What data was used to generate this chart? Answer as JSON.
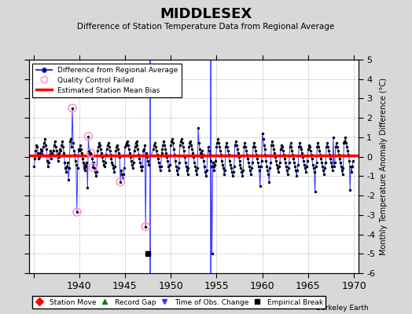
{
  "title": "MIDDLESEX",
  "subtitle": "Difference of Station Temperature Data from Regional Average",
  "ylabel": "Monthly Temperature Anomaly Difference (°C)",
  "xlim": [
    1934.5,
    1970.5
  ],
  "ylim": [
    -6,
    5
  ],
  "yticks": [
    -6,
    -5,
    -4,
    -3,
    -2,
    -1,
    0,
    1,
    2,
    3,
    4,
    5
  ],
  "xticks": [
    1935,
    1940,
    1945,
    1950,
    1955,
    1960,
    1965,
    1970
  ],
  "xticklabels": [
    "",
    "1940",
    "1945",
    "1950",
    "1955",
    "1960",
    "1965",
    "1970"
  ],
  "bias_value": 0.05,
  "time_of_obs_changes": [
    1947.75,
    1954.33
  ],
  "empirical_break_x": 1947.5,
  "empirical_break_y": -5.0,
  "quality_control_failed": [
    [
      1939.25,
      2.5
    ],
    [
      1939.75,
      -2.85
    ],
    [
      1941.0,
      1.05
    ],
    [
      1941.25,
      0.2
    ],
    [
      1941.5,
      -0.55
    ],
    [
      1944.5,
      -1.3
    ],
    [
      1947.25,
      -3.6
    ]
  ],
  "line_color": "#3333ff",
  "bias_color": "#ff0000",
  "qc_color": "#ff99cc",
  "background_color": "#d8d8d8",
  "plot_bg_color": "#ffffff",
  "grid_color": "#bbbbbb",
  "series_data": [
    [
      1935.0833,
      -0.5
    ],
    [
      1935.1667,
      -0.1
    ],
    [
      1935.25,
      0.3
    ],
    [
      1935.3333,
      0.6
    ],
    [
      1935.4167,
      0.5
    ],
    [
      1935.5,
      0.2
    ],
    [
      1935.5833,
      -0.1
    ],
    [
      1935.6667,
      0.0
    ],
    [
      1935.75,
      0.2
    ],
    [
      1935.8333,
      0.4
    ],
    [
      1935.9167,
      0.3
    ],
    [
      1936.0,
      0.1
    ],
    [
      1936.0833,
      0.5
    ],
    [
      1936.1667,
      0.7
    ],
    [
      1936.25,
      0.9
    ],
    [
      1936.3333,
      0.6
    ],
    [
      1936.4167,
      0.4
    ],
    [
      1936.5,
      -0.2
    ],
    [
      1936.5833,
      -0.5
    ],
    [
      1936.6667,
      -0.3
    ],
    [
      1936.75,
      0.1
    ],
    [
      1936.8333,
      0.3
    ],
    [
      1936.9167,
      -0.1
    ],
    [
      1937.0,
      0.2
    ],
    [
      1937.0833,
      0.1
    ],
    [
      1937.1667,
      0.3
    ],
    [
      1937.25,
      0.6
    ],
    [
      1937.3333,
      0.8
    ],
    [
      1937.4167,
      0.5
    ],
    [
      1937.5,
      0.3
    ],
    [
      1937.5833,
      0.1
    ],
    [
      1937.6667,
      -0.2
    ],
    [
      1937.75,
      0.0
    ],
    [
      1937.8333,
      0.2
    ],
    [
      1937.9167,
      0.4
    ],
    [
      1938.0,
      0.3
    ],
    [
      1938.0833,
      0.6
    ],
    [
      1938.1667,
      0.8
    ],
    [
      1938.25,
      0.5
    ],
    [
      1938.3333,
      0.2
    ],
    [
      1938.4167,
      -0.3
    ],
    [
      1938.5,
      -0.6
    ],
    [
      1938.5833,
      -0.8
    ],
    [
      1938.6667,
      -0.5
    ],
    [
      1938.75,
      -0.3
    ],
    [
      1938.8333,
      -1.2
    ],
    [
      1938.9167,
      -0.6
    ],
    [
      1939.0,
      0.8
    ],
    [
      1939.0833,
      0.9
    ],
    [
      1939.1667,
      0.5
    ],
    [
      1939.25,
      2.5
    ],
    [
      1939.3333,
      0.7
    ],
    [
      1939.4167,
      0.3
    ],
    [
      1939.5,
      0.1
    ],
    [
      1939.5833,
      -0.2
    ],
    [
      1939.6667,
      -0.4
    ],
    [
      1939.75,
      -2.85
    ],
    [
      1939.8333,
      -0.6
    ],
    [
      1939.9167,
      0.4
    ],
    [
      1940.0,
      0.3
    ],
    [
      1940.0833,
      0.6
    ],
    [
      1940.1667,
      0.4
    ],
    [
      1940.25,
      0.2
    ],
    [
      1940.3333,
      -0.1
    ],
    [
      1940.4167,
      -0.3
    ],
    [
      1940.5,
      -0.6
    ],
    [
      1940.5833,
      -0.4
    ],
    [
      1940.6667,
      -0.7
    ],
    [
      1940.75,
      -0.5
    ],
    [
      1940.8333,
      -0.3
    ],
    [
      1940.9167,
      -1.6
    ],
    [
      1941.0,
      1.05
    ],
    [
      1941.0833,
      0.3
    ],
    [
      1941.1667,
      0.2
    ],
    [
      1941.25,
      0.2
    ],
    [
      1941.3333,
      0.1
    ],
    [
      1941.4167,
      -0.1
    ],
    [
      1941.5,
      -0.55
    ],
    [
      1941.5833,
      -0.3
    ],
    [
      1941.6667,
      -0.6
    ],
    [
      1941.75,
      -0.8
    ],
    [
      1941.8333,
      -1.0
    ],
    [
      1941.9167,
      -0.8
    ],
    [
      1942.0,
      0.3
    ],
    [
      1942.0833,
      0.5
    ],
    [
      1942.1667,
      0.7
    ],
    [
      1942.25,
      0.6
    ],
    [
      1942.3333,
      0.4
    ],
    [
      1942.4167,
      0.2
    ],
    [
      1942.5,
      0.0
    ],
    [
      1942.5833,
      -0.2
    ],
    [
      1942.6667,
      -0.4
    ],
    [
      1942.75,
      -0.5
    ],
    [
      1942.8333,
      -0.3
    ],
    [
      1942.9167,
      0.1
    ],
    [
      1943.0,
      0.4
    ],
    [
      1943.0833,
      0.6
    ],
    [
      1943.1667,
      0.7
    ],
    [
      1943.25,
      0.5
    ],
    [
      1943.3333,
      0.3
    ],
    [
      1943.4167,
      0.1
    ],
    [
      1943.5,
      -0.1
    ],
    [
      1943.5833,
      -0.3
    ],
    [
      1943.6667,
      -0.4
    ],
    [
      1943.75,
      -0.6
    ],
    [
      1943.8333,
      -0.8
    ],
    [
      1943.9167,
      -0.5
    ],
    [
      1944.0,
      0.3
    ],
    [
      1944.0833,
      0.5
    ],
    [
      1944.1667,
      0.6
    ],
    [
      1944.25,
      0.4
    ],
    [
      1944.3333,
      0.2
    ],
    [
      1944.4167,
      0.0
    ],
    [
      1944.5,
      -1.3
    ],
    [
      1944.5833,
      -0.7
    ],
    [
      1944.6667,
      -0.9
    ],
    [
      1944.75,
      -1.1
    ],
    [
      1944.8333,
      -0.9
    ],
    [
      1944.9167,
      -0.6
    ],
    [
      1945.0,
      0.5
    ],
    [
      1945.0833,
      0.6
    ],
    [
      1945.1667,
      0.7
    ],
    [
      1945.25,
      0.8
    ],
    [
      1945.3333,
      0.6
    ],
    [
      1945.4167,
      0.4
    ],
    [
      1945.5,
      0.2
    ],
    [
      1945.5833,
      0.0
    ],
    [
      1945.6667,
      -0.2
    ],
    [
      1945.75,
      -0.4
    ],
    [
      1945.8333,
      -0.6
    ],
    [
      1945.9167,
      -0.3
    ],
    [
      1946.0,
      0.3
    ],
    [
      1946.0833,
      0.5
    ],
    [
      1946.1667,
      0.7
    ],
    [
      1946.25,
      0.8
    ],
    [
      1946.3333,
      0.6
    ],
    [
      1946.4167,
      0.4
    ],
    [
      1946.5,
      0.1
    ],
    [
      1946.5833,
      -0.1
    ],
    [
      1946.6667,
      -0.3
    ],
    [
      1946.75,
      -0.5
    ],
    [
      1946.8333,
      -0.7
    ],
    [
      1946.9167,
      -0.5
    ],
    [
      1947.0,
      0.3
    ],
    [
      1947.0833,
      0.4
    ],
    [
      1947.1667,
      0.6
    ],
    [
      1947.25,
      -3.6
    ],
    [
      1947.3333,
      0.2
    ],
    [
      1947.4167,
      0.0
    ],
    [
      1947.5,
      -0.2
    ],
    [
      1947.5833,
      -0.4
    ],
    [
      1948.0833,
      0.4
    ],
    [
      1948.1667,
      0.6
    ],
    [
      1948.25,
      0.7
    ],
    [
      1948.3333,
      0.5
    ],
    [
      1948.4167,
      0.3
    ],
    [
      1948.5,
      0.1
    ],
    [
      1948.5833,
      -0.1
    ],
    [
      1948.6667,
      -0.3
    ],
    [
      1948.75,
      -0.5
    ],
    [
      1948.8333,
      -0.7
    ],
    [
      1948.9167,
      -0.5
    ],
    [
      1949.0,
      0.2
    ],
    [
      1949.0833,
      0.4
    ],
    [
      1949.1667,
      0.6
    ],
    [
      1949.25,
      0.8
    ],
    [
      1949.3333,
      0.6
    ],
    [
      1949.4167,
      0.4
    ],
    [
      1949.5,
      0.2
    ],
    [
      1949.5833,
      0.0
    ],
    [
      1949.6667,
      -0.2
    ],
    [
      1949.75,
      -0.5
    ],
    [
      1949.8333,
      -0.7
    ],
    [
      1949.9167,
      -0.4
    ],
    [
      1950.0,
      0.6
    ],
    [
      1950.0833,
      0.8
    ],
    [
      1950.1667,
      0.9
    ],
    [
      1950.25,
      0.7
    ],
    [
      1950.3333,
      0.4
    ],
    [
      1950.4167,
      0.1
    ],
    [
      1950.5,
      -0.2
    ],
    [
      1950.5833,
      -0.5
    ],
    [
      1950.6667,
      -0.7
    ],
    [
      1950.75,
      -0.9
    ],
    [
      1950.8333,
      -0.6
    ],
    [
      1950.9167,
      -0.3
    ],
    [
      1951.0,
      0.6
    ],
    [
      1951.0833,
      0.8
    ],
    [
      1951.1667,
      0.9
    ],
    [
      1951.25,
      0.7
    ],
    [
      1951.3333,
      0.5
    ],
    [
      1951.4167,
      0.3
    ],
    [
      1951.5,
      0.0
    ],
    [
      1951.5833,
      -0.3
    ],
    [
      1951.6667,
      -0.5
    ],
    [
      1951.75,
      -0.7
    ],
    [
      1951.8333,
      -0.9
    ],
    [
      1951.9167,
      -0.6
    ],
    [
      1952.0,
      0.5
    ],
    [
      1952.0833,
      0.7
    ],
    [
      1952.1667,
      0.8
    ],
    [
      1952.25,
      0.6
    ],
    [
      1952.3333,
      0.4
    ],
    [
      1952.4167,
      0.2
    ],
    [
      1952.5,
      0.0
    ],
    [
      1952.5833,
      -0.3
    ],
    [
      1952.6667,
      -0.5
    ],
    [
      1952.75,
      -0.7
    ],
    [
      1952.8333,
      -0.9
    ],
    [
      1952.9167,
      -0.6
    ],
    [
      1953.0,
      1.5
    ],
    [
      1953.0833,
      0.7
    ],
    [
      1953.1667,
      0.4
    ],
    [
      1953.25,
      0.2
    ],
    [
      1953.3333,
      0.0
    ],
    [
      1953.4167,
      0.3
    ],
    [
      1953.5,
      0.1
    ],
    [
      1953.5833,
      -0.2
    ],
    [
      1953.6667,
      -0.5
    ],
    [
      1953.75,
      -0.8
    ],
    [
      1953.8333,
      -1.0
    ],
    [
      1953.9167,
      -0.7
    ],
    [
      1954.0833,
      0.5
    ],
    [
      1954.1667,
      0.3
    ],
    [
      1954.25,
      0.1
    ],
    [
      1954.3333,
      -0.2
    ],
    [
      1954.4167,
      -0.5
    ],
    [
      1954.5,
      -5.0
    ],
    [
      1954.5833,
      -0.3
    ],
    [
      1954.6667,
      -0.5
    ],
    [
      1954.75,
      -0.7
    ],
    [
      1954.8333,
      -0.4
    ],
    [
      1954.9167,
      -0.2
    ],
    [
      1955.0,
      0.5
    ],
    [
      1955.0833,
      0.7
    ],
    [
      1955.1667,
      0.9
    ],
    [
      1955.25,
      0.7
    ],
    [
      1955.3333,
      0.5
    ],
    [
      1955.4167,
      0.3
    ],
    [
      1955.5,
      0.1
    ],
    [
      1955.5833,
      -0.2
    ],
    [
      1955.6667,
      -0.4
    ],
    [
      1955.75,
      -0.6
    ],
    [
      1955.8333,
      -0.9
    ],
    [
      1955.9167,
      -0.7
    ],
    [
      1956.0,
      0.5
    ],
    [
      1956.0833,
      0.7
    ],
    [
      1956.1667,
      0.5
    ],
    [
      1956.25,
      0.3
    ],
    [
      1956.3333,
      0.1
    ],
    [
      1956.4167,
      -0.2
    ],
    [
      1956.5,
      -0.4
    ],
    [
      1956.5833,
      -0.6
    ],
    [
      1956.6667,
      -0.8
    ],
    [
      1956.75,
      -1.0
    ],
    [
      1956.8333,
      -0.8
    ],
    [
      1956.9167,
      -0.5
    ],
    [
      1957.0,
      0.6
    ],
    [
      1957.0833,
      0.8
    ],
    [
      1957.1667,
      0.6
    ],
    [
      1957.25,
      0.4
    ],
    [
      1957.3333,
      0.2
    ],
    [
      1957.4167,
      0.0
    ],
    [
      1957.5,
      -0.2
    ],
    [
      1957.5833,
      -0.4
    ],
    [
      1957.6667,
      -0.6
    ],
    [
      1957.75,
      -0.8
    ],
    [
      1957.8333,
      -1.0
    ],
    [
      1957.9167,
      -0.7
    ],
    [
      1958.0,
      0.5
    ],
    [
      1958.0833,
      0.7
    ],
    [
      1958.1667,
      0.5
    ],
    [
      1958.25,
      0.3
    ],
    [
      1958.3333,
      0.1
    ],
    [
      1958.4167,
      -0.1
    ],
    [
      1958.5,
      -0.3
    ],
    [
      1958.5833,
      -0.5
    ],
    [
      1958.6667,
      -0.7
    ],
    [
      1958.75,
      -0.9
    ],
    [
      1958.8333,
      -0.6
    ],
    [
      1958.9167,
      -0.3
    ],
    [
      1959.0,
      0.5
    ],
    [
      1959.0833,
      0.7
    ],
    [
      1959.1667,
      0.5
    ],
    [
      1959.25,
      0.3
    ],
    [
      1959.3333,
      0.1
    ],
    [
      1959.4167,
      -0.1
    ],
    [
      1959.5,
      -0.3
    ],
    [
      1959.5833,
      -0.5
    ],
    [
      1959.6667,
      -0.7
    ],
    [
      1959.75,
      -1.5
    ],
    [
      1959.8333,
      -0.5
    ],
    [
      1959.9167,
      -0.2
    ],
    [
      1960.0,
      1.2
    ],
    [
      1960.0833,
      0.9
    ],
    [
      1960.1667,
      0.6
    ],
    [
      1960.25,
      0.4
    ],
    [
      1960.3333,
      0.1
    ],
    [
      1960.4167,
      -0.2
    ],
    [
      1960.5,
      -0.5
    ],
    [
      1960.5833,
      -0.7
    ],
    [
      1960.6667,
      -0.9
    ],
    [
      1960.75,
      -1.3
    ],
    [
      1960.8333,
      -0.6
    ],
    [
      1960.9167,
      -0.3
    ],
    [
      1961.0,
      0.6
    ],
    [
      1961.0833,
      0.8
    ],
    [
      1961.1667,
      0.6
    ],
    [
      1961.25,
      0.4
    ],
    [
      1961.3333,
      0.2
    ],
    [
      1961.4167,
      0.0
    ],
    [
      1961.5,
      -0.2
    ],
    [
      1961.5833,
      -0.4
    ],
    [
      1961.6667,
      -0.6
    ],
    [
      1961.75,
      -0.8
    ],
    [
      1961.8333,
      -0.5
    ],
    [
      1961.9167,
      -0.3
    ],
    [
      1962.0,
      0.4
    ],
    [
      1962.0833,
      0.6
    ],
    [
      1962.1667,
      0.5
    ],
    [
      1962.25,
      0.3
    ],
    [
      1962.3333,
      0.1
    ],
    [
      1962.4167,
      -0.1
    ],
    [
      1962.5,
      -0.3
    ],
    [
      1962.5833,
      -0.5
    ],
    [
      1962.6667,
      -0.7
    ],
    [
      1962.75,
      -0.9
    ],
    [
      1962.8333,
      -0.6
    ],
    [
      1962.9167,
      -0.3
    ],
    [
      1963.0,
      0.5
    ],
    [
      1963.0833,
      0.7
    ],
    [
      1963.1667,
      0.5
    ],
    [
      1963.25,
      0.3
    ],
    [
      1963.3333,
      0.1
    ],
    [
      1963.4167,
      -0.1
    ],
    [
      1963.5,
      -0.3
    ],
    [
      1963.5833,
      -0.5
    ],
    [
      1963.6667,
      -0.7
    ],
    [
      1963.75,
      -1.0
    ],
    [
      1963.8333,
      -0.7
    ],
    [
      1963.9167,
      -0.4
    ],
    [
      1964.0,
      0.5
    ],
    [
      1964.0833,
      0.7
    ],
    [
      1964.1667,
      0.5
    ],
    [
      1964.25,
      0.4
    ],
    [
      1964.3333,
      0.2
    ],
    [
      1964.4167,
      0.0
    ],
    [
      1964.5,
      -0.2
    ],
    [
      1964.5833,
      -0.4
    ],
    [
      1964.6667,
      -0.6
    ],
    [
      1964.75,
      -0.8
    ],
    [
      1964.8333,
      -0.5
    ],
    [
      1964.9167,
      -0.2
    ],
    [
      1965.0,
      0.4
    ],
    [
      1965.0833,
      0.6
    ],
    [
      1965.1667,
      0.5
    ],
    [
      1965.25,
      0.3
    ],
    [
      1965.3333,
      0.1
    ],
    [
      1965.4167,
      -0.1
    ],
    [
      1965.5,
      -0.4
    ],
    [
      1965.5833,
      -0.6
    ],
    [
      1965.6667,
      -0.8
    ],
    [
      1965.75,
      -1.8
    ],
    [
      1965.8333,
      -0.5
    ],
    [
      1965.9167,
      -0.3
    ],
    [
      1966.0,
      0.5
    ],
    [
      1966.0833,
      0.7
    ],
    [
      1966.1667,
      0.5
    ],
    [
      1966.25,
      0.3
    ],
    [
      1966.3333,
      0.1
    ],
    [
      1966.4167,
      -0.1
    ],
    [
      1966.5,
      -0.3
    ],
    [
      1966.5833,
      -0.5
    ],
    [
      1966.6667,
      -0.7
    ],
    [
      1966.75,
      -0.9
    ],
    [
      1966.8333,
      -0.6
    ],
    [
      1966.9167,
      -0.3
    ],
    [
      1967.0,
      0.5
    ],
    [
      1967.0833,
      0.7
    ],
    [
      1967.1667,
      0.5
    ],
    [
      1967.25,
      0.3
    ],
    [
      1967.3333,
      0.1
    ],
    [
      1967.4167,
      -0.1
    ],
    [
      1967.5,
      -0.3
    ],
    [
      1967.5833,
      -0.5
    ],
    [
      1967.6667,
      -0.7
    ],
    [
      1967.75,
      1.0
    ],
    [
      1967.8333,
      -0.5
    ],
    [
      1967.9167,
      -0.3
    ],
    [
      1968.0,
      0.5
    ],
    [
      1968.0833,
      0.7
    ],
    [
      1968.1667,
      0.5
    ],
    [
      1968.25,
      0.3
    ],
    [
      1968.3333,
      0.1
    ],
    [
      1968.4167,
      -0.1
    ],
    [
      1968.5,
      -0.3
    ],
    [
      1968.5833,
      -0.5
    ],
    [
      1968.6667,
      -0.7
    ],
    [
      1968.75,
      -0.9
    ],
    [
      1968.8333,
      -0.6
    ],
    [
      1968.9167,
      0.7
    ],
    [
      1969.0,
      0.8
    ],
    [
      1969.0833,
      1.0
    ],
    [
      1969.1667,
      0.7
    ],
    [
      1969.25,
      0.5
    ],
    [
      1969.3333,
      0.3
    ],
    [
      1969.4167,
      0.1
    ],
    [
      1969.5,
      -0.2
    ],
    [
      1969.5833,
      -1.7
    ],
    [
      1969.6667,
      -0.5
    ],
    [
      1969.75,
      -0.8
    ],
    [
      1969.8333,
      -0.5
    ],
    [
      1969.9167,
      -0.2
    ]
  ]
}
